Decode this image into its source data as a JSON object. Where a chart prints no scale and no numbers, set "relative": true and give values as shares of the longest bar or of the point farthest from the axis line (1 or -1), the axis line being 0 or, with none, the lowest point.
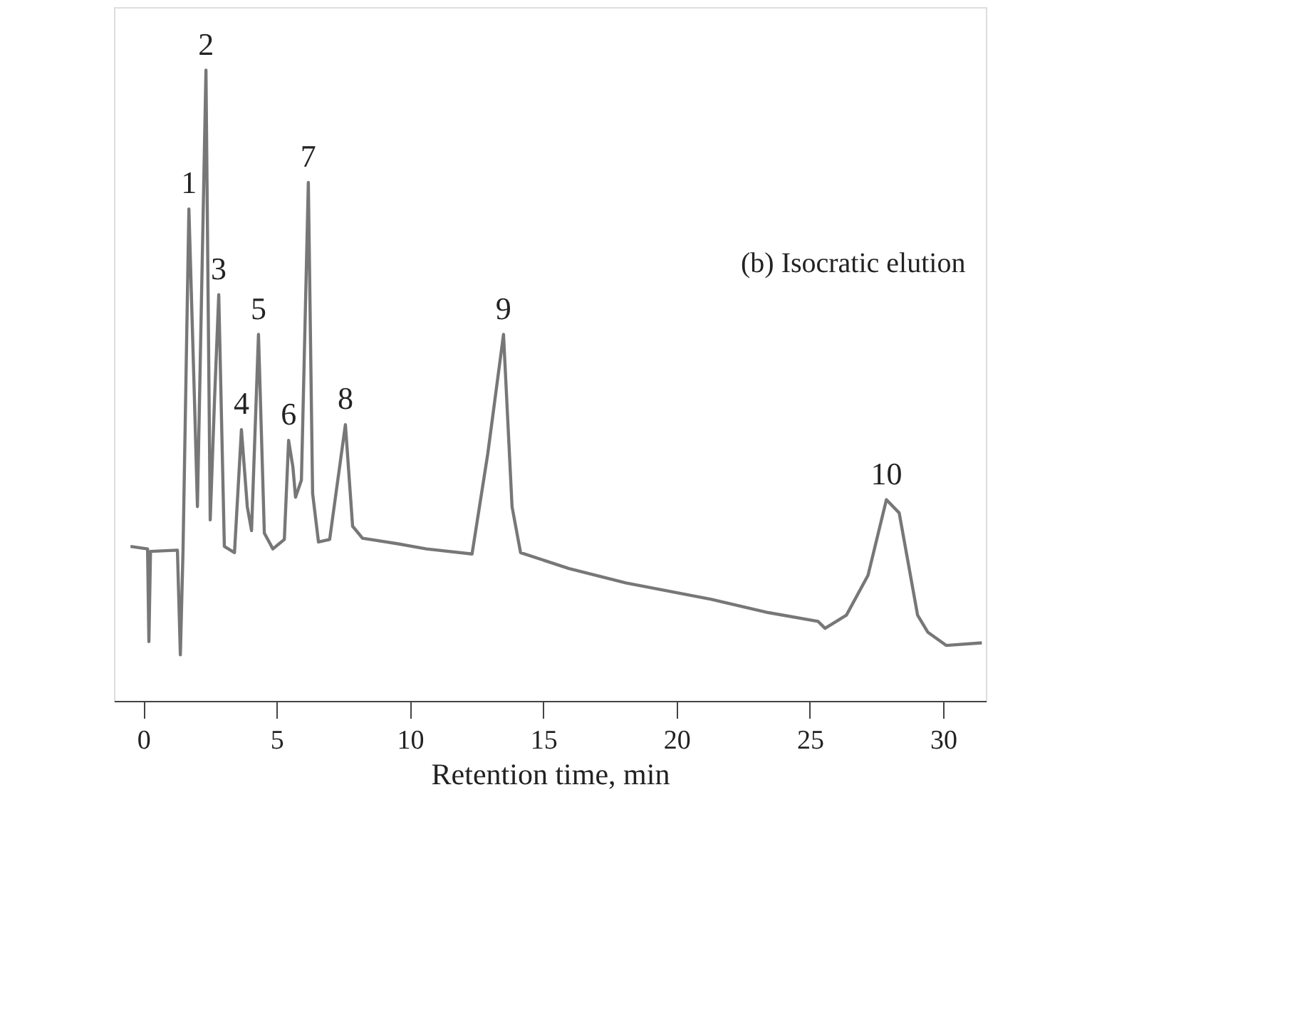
{
  "chart_data": {
    "type": "line",
    "relative": true,
    "xlabel": "Retention time, min",
    "x": [
      -0.48,
      0.16,
      0.21,
      0.27,
      1.28,
      1.39,
      1.49,
      1.71,
      1.92,
      2.03,
      2.35,
      2.51,
      2.67,
      2.83,
      3.04,
      3.42,
      3.68,
      3.9,
      4.06,
      4.32,
      4.54,
      4.86,
      5.29,
      5.45,
      5.61,
      5.71,
      5.93,
      6.19,
      6.35,
      6.57,
      6.99,
      7.58,
      7.85,
      8.22,
      9.56,
      10.62,
      12.33,
      12.92,
      13.51,
      13.83,
      14.15,
      15.96,
      18.1,
      21.3,
      23.44,
      25.31,
      25.57,
      26.37,
      27.18,
      27.87,
      28.35,
      29.04,
      29.42,
      30.11,
      31.45
    ],
    "series": [
      {
        "color": "#777777",
        "values": [
          0.245,
          0.241,
          0.094,
          0.237,
          0.239,
          0.073,
          0.239,
          0.78,
          0.476,
          0.308,
          1.0,
          0.287,
          0.476,
          0.644,
          0.245,
          0.235,
          0.43,
          0.308,
          0.27,
          0.581,
          0.266,
          0.241,
          0.256,
          0.413,
          0.371,
          0.323,
          0.35,
          0.822,
          0.329,
          0.252,
          0.256,
          0.438,
          0.277,
          0.258,
          0.249,
          0.241,
          0.233,
          0.392,
          0.581,
          0.308,
          0.235,
          0.21,
          0.187,
          0.161,
          0.14,
          0.126,
          0.115,
          0.136,
          0.199,
          0.319,
          0.298,
          0.136,
          0.109,
          0.088,
          0.092
        ]
      }
    ],
    "xlim": [
      -1.1,
      31.6
    ],
    "xticks": [
      0,
      5,
      10,
      15,
      20,
      25,
      30
    ],
    "grid": false,
    "annotations": [
      {
        "text": "1",
        "x": 1.71,
        "y": 0.78
      },
      {
        "text": "2",
        "x": 2.35,
        "y": 1.0
      },
      {
        "text": "3",
        "x": 2.83,
        "y": 0.644
      },
      {
        "text": "4",
        "x": 3.68,
        "y": 0.43
      },
      {
        "text": "5",
        "x": 4.32,
        "y": 0.581
      },
      {
        "text": "6",
        "x": 5.45,
        "y": 0.413
      },
      {
        "text": "7",
        "x": 6.19,
        "y": 0.822
      },
      {
        "text": "8",
        "x": 7.58,
        "y": 0.438
      },
      {
        "text": "9",
        "x": 13.51,
        "y": 0.581
      },
      {
        "text": "10",
        "x": 27.87,
        "y": 0.319
      },
      "(b) Isocratic elution"
    ]
  }
}
